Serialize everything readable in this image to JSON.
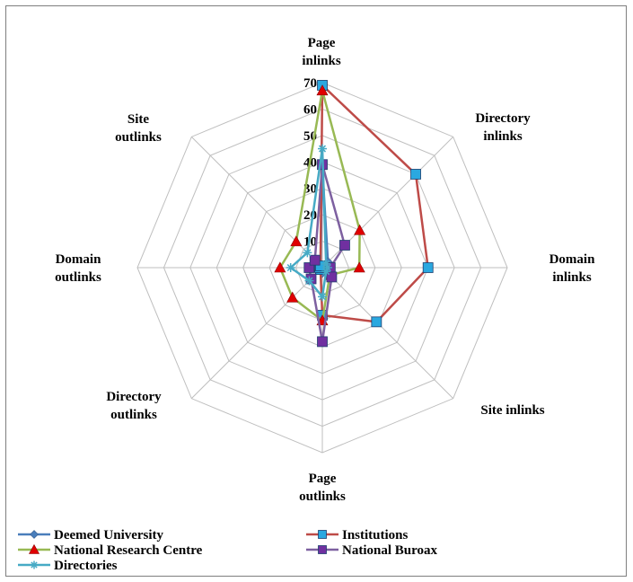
{
  "chart_data": {
    "type": "radar",
    "title": "",
    "axes": [
      "Page inlinks",
      "Directory inlinks",
      "Domain inlinks",
      "Site inlinks",
      "Page outlinks",
      "Directory outlinks",
      "Domain outlinks",
      "Site outlinks"
    ],
    "axis_label_lines": [
      [
        "Page",
        "inlinks"
      ],
      [
        "Directory",
        "inlinks"
      ],
      [
        "Domain",
        "inlinks"
      ],
      [
        "Site inlinks"
      ],
      [
        "Page",
        "outlinks"
      ],
      [
        "Directory",
        "outlinks"
      ],
      [
        "Domain",
        "outlinks"
      ],
      [
        "Site",
        "outlinks"
      ]
    ],
    "r_ticks": [
      0,
      10,
      20,
      30,
      40,
      50,
      60,
      70
    ],
    "r_lim": [
      0,
      70
    ],
    "grid": true,
    "legend_position": "bottom",
    "series": [
      {
        "name": "Deemed University",
        "color": "#4a7ebb",
        "marker": "diamond",
        "values": [
          38,
          3,
          1,
          2,
          2,
          1,
          2,
          1
        ]
      },
      {
        "name": "Institutions",
        "color": "#be4b48",
        "marker": "square",
        "values": [
          69,
          50,
          40,
          29,
          18,
          1,
          1,
          1
        ]
      },
      {
        "name": "National Research Centre",
        "color": "#98b954",
        "marker": "triangle",
        "values": [
          67,
          20,
          14,
          4,
          20,
          16,
          16,
          14
        ]
      },
      {
        "name": "National Buroax",
        "color": "#7d60a0",
        "marker": "square",
        "values": [
          39,
          12,
          3,
          5,
          28,
          6,
          5,
          4
        ]
      },
      {
        "name": "Directories",
        "color": "#46aac5",
        "marker": "asterisk",
        "values": [
          45,
          2,
          2,
          2,
          11,
          7,
          12,
          8
        ]
      }
    ]
  }
}
